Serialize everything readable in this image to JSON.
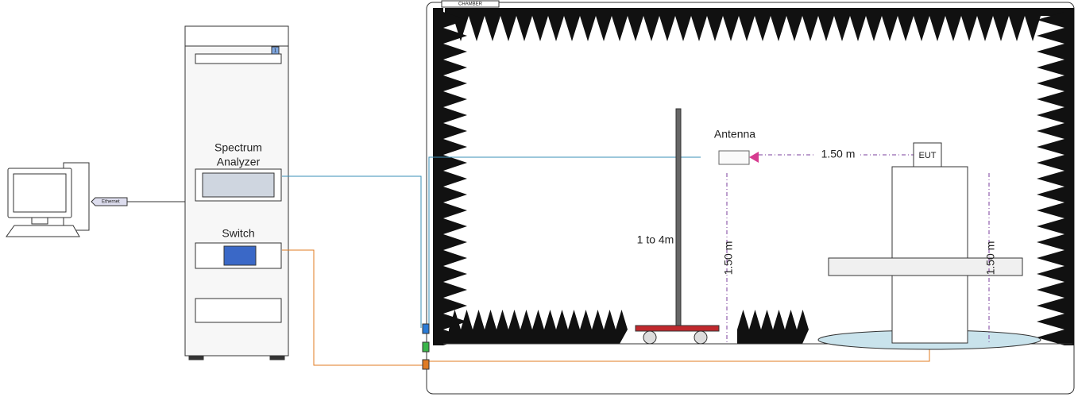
{
  "computer": {
    "ethernet": "Ethernet"
  },
  "rack": {
    "number": "1",
    "devices": [
      {
        "label_lines": [
          "Spectrum",
          "Analyzer"
        ]
      },
      {
        "label_lines": [
          "Switch"
        ]
      }
    ]
  },
  "chamber": {
    "label": "CHAMBER",
    "mast": {
      "label": "1 to 4m"
    },
    "antenna": {
      "label": "Antenna",
      "height": "1.50 m"
    },
    "distance": "1.50 m",
    "eut": {
      "label": "EUT",
      "height": "1.50 m"
    }
  }
}
